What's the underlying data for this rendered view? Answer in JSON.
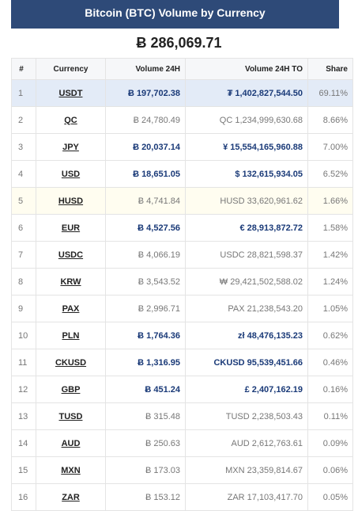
{
  "header": {
    "title": "Bitcoin (BTC) Volume by Currency"
  },
  "total": "Ƀ 286,069.71",
  "table": {
    "headers": {
      "rank": "#",
      "currency": "Currency",
      "volume": "Volume 24H",
      "volume_to": "Volume 24H TO",
      "share": "Share"
    },
    "rows": [
      {
        "rank": "1",
        "currency": "USDT",
        "volume": "Ƀ 197,702.38",
        "volume_to": "₮ 1,402,827,544.50",
        "share": "69.11%"
      },
      {
        "rank": "2",
        "currency": "QC",
        "volume": "Ƀ 24,780.49",
        "volume_to": "QC 1,234,999,630.68",
        "share": "8.66%"
      },
      {
        "rank": "3",
        "currency": "JPY",
        "volume": "Ƀ 20,037.14",
        "volume_to": "¥ 15,554,165,960.88",
        "share": "7.00%"
      },
      {
        "rank": "4",
        "currency": "USD",
        "volume": "Ƀ 18,651.05",
        "volume_to": "$ 132,615,934.05",
        "share": "6.52%"
      },
      {
        "rank": "5",
        "currency": "HUSD",
        "volume": "Ƀ 4,741.84",
        "volume_to": "HUSD 33,620,961.62",
        "share": "1.66%"
      },
      {
        "rank": "6",
        "currency": "EUR",
        "volume": "Ƀ 4,527.56",
        "volume_to": "€ 28,913,872.72",
        "share": "1.58%"
      },
      {
        "rank": "7",
        "currency": "USDC",
        "volume": "Ƀ 4,066.19",
        "volume_to": "USDC 28,821,598.37",
        "share": "1.42%"
      },
      {
        "rank": "8",
        "currency": "KRW",
        "volume": "Ƀ 3,543.52",
        "volume_to": "₩ 29,421,502,588.02",
        "share": "1.24%"
      },
      {
        "rank": "9",
        "currency": "PAX",
        "volume": "Ƀ 2,996.71",
        "volume_to": "PAX 21,238,543.20",
        "share": "1.05%"
      },
      {
        "rank": "10",
        "currency": "PLN",
        "volume": "Ƀ 1,764.36",
        "volume_to": "zł 48,476,135.23",
        "share": "0.62%"
      },
      {
        "rank": "11",
        "currency": "CKUSD",
        "volume": "Ƀ 1,316.95",
        "volume_to": "CKUSD 95,539,451.66",
        "share": "0.46%"
      },
      {
        "rank": "12",
        "currency": "GBP",
        "volume": "Ƀ 451.24",
        "volume_to": "£ 2,407,162.19",
        "share": "0.16%"
      },
      {
        "rank": "13",
        "currency": "TUSD",
        "volume": "Ƀ 315.48",
        "volume_to": "TUSD 2,238,503.43",
        "share": "0.11%"
      },
      {
        "rank": "14",
        "currency": "AUD",
        "volume": "Ƀ 250.63",
        "volume_to": "AUD 2,612,763.61",
        "share": "0.09%"
      },
      {
        "rank": "15",
        "currency": "MXN",
        "volume": "Ƀ 173.03",
        "volume_to": "MXN 23,359,814.67",
        "share": "0.06%"
      },
      {
        "rank": "16",
        "currency": "ZAR",
        "volume": "Ƀ 153.12",
        "volume_to": "ZAR 17,103,417.70",
        "share": "0.05%"
      }
    ]
  },
  "colors": {
    "header_bg": "#2e4a78",
    "accent_text": "#1a3a78",
    "highlight_row": "#e3ebf7"
  }
}
